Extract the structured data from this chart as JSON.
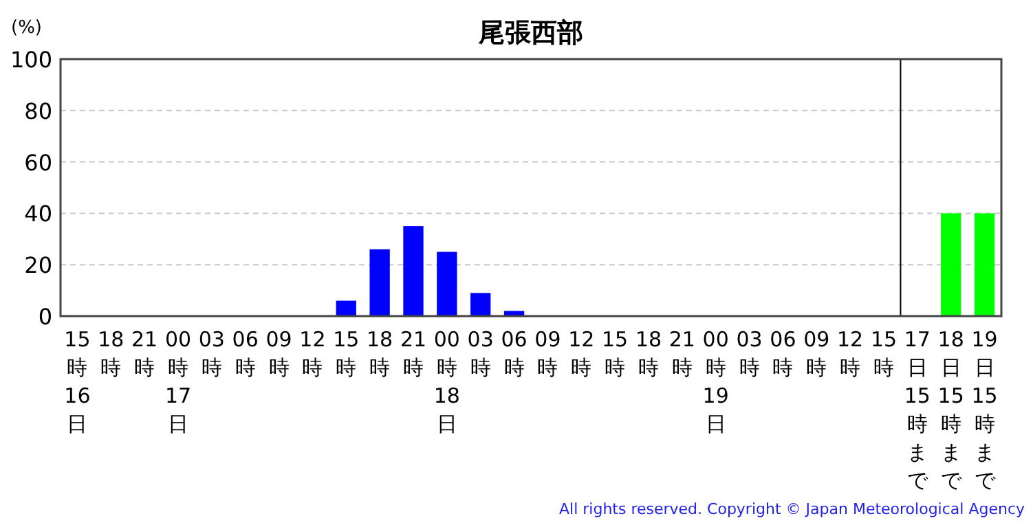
{
  "chart_data": {
    "type": "bar",
    "title": "尾張西部",
    "ylabel": "(%)",
    "categories": [
      "15時16日",
      "18時",
      "21時",
      "00時17日",
      "03時",
      "06時",
      "09時",
      "12時",
      "15時",
      "18時",
      "21時",
      "00時18日",
      "03時",
      "06時",
      "09時",
      "12時",
      "15時",
      "18時",
      "21時",
      "00時19日",
      "03時",
      "06時",
      "09時",
      "12時",
      "15時",
      "17日15時まで",
      "18日15時まで",
      "19日15時まで"
    ],
    "series": [
      {
        "color": "#0000ff",
        "values": [
          0,
          0,
          0,
          0,
          0,
          0,
          0,
          0,
          6,
          26,
          35,
          25,
          9,
          2,
          0,
          0,
          0,
          0,
          0,
          0,
          0,
          0,
          0,
          0,
          0,
          null,
          null,
          null
        ]
      },
      {
        "color": "#00ff00",
        "values": [
          null,
          null,
          null,
          null,
          null,
          null,
          null,
          null,
          null,
          null,
          null,
          null,
          null,
          null,
          null,
          null,
          null,
          null,
          null,
          null,
          null,
          null,
          null,
          null,
          null,
          0,
          40,
          40
        ]
      }
    ],
    "ylim": [
      0,
      100
    ],
    "yticks": [
      0,
      20,
      40,
      60,
      80,
      100
    ],
    "grid": "y",
    "annotations": [
      "All rights reserved. Copyright © Japan Meteorological Agency"
    ]
  }
}
